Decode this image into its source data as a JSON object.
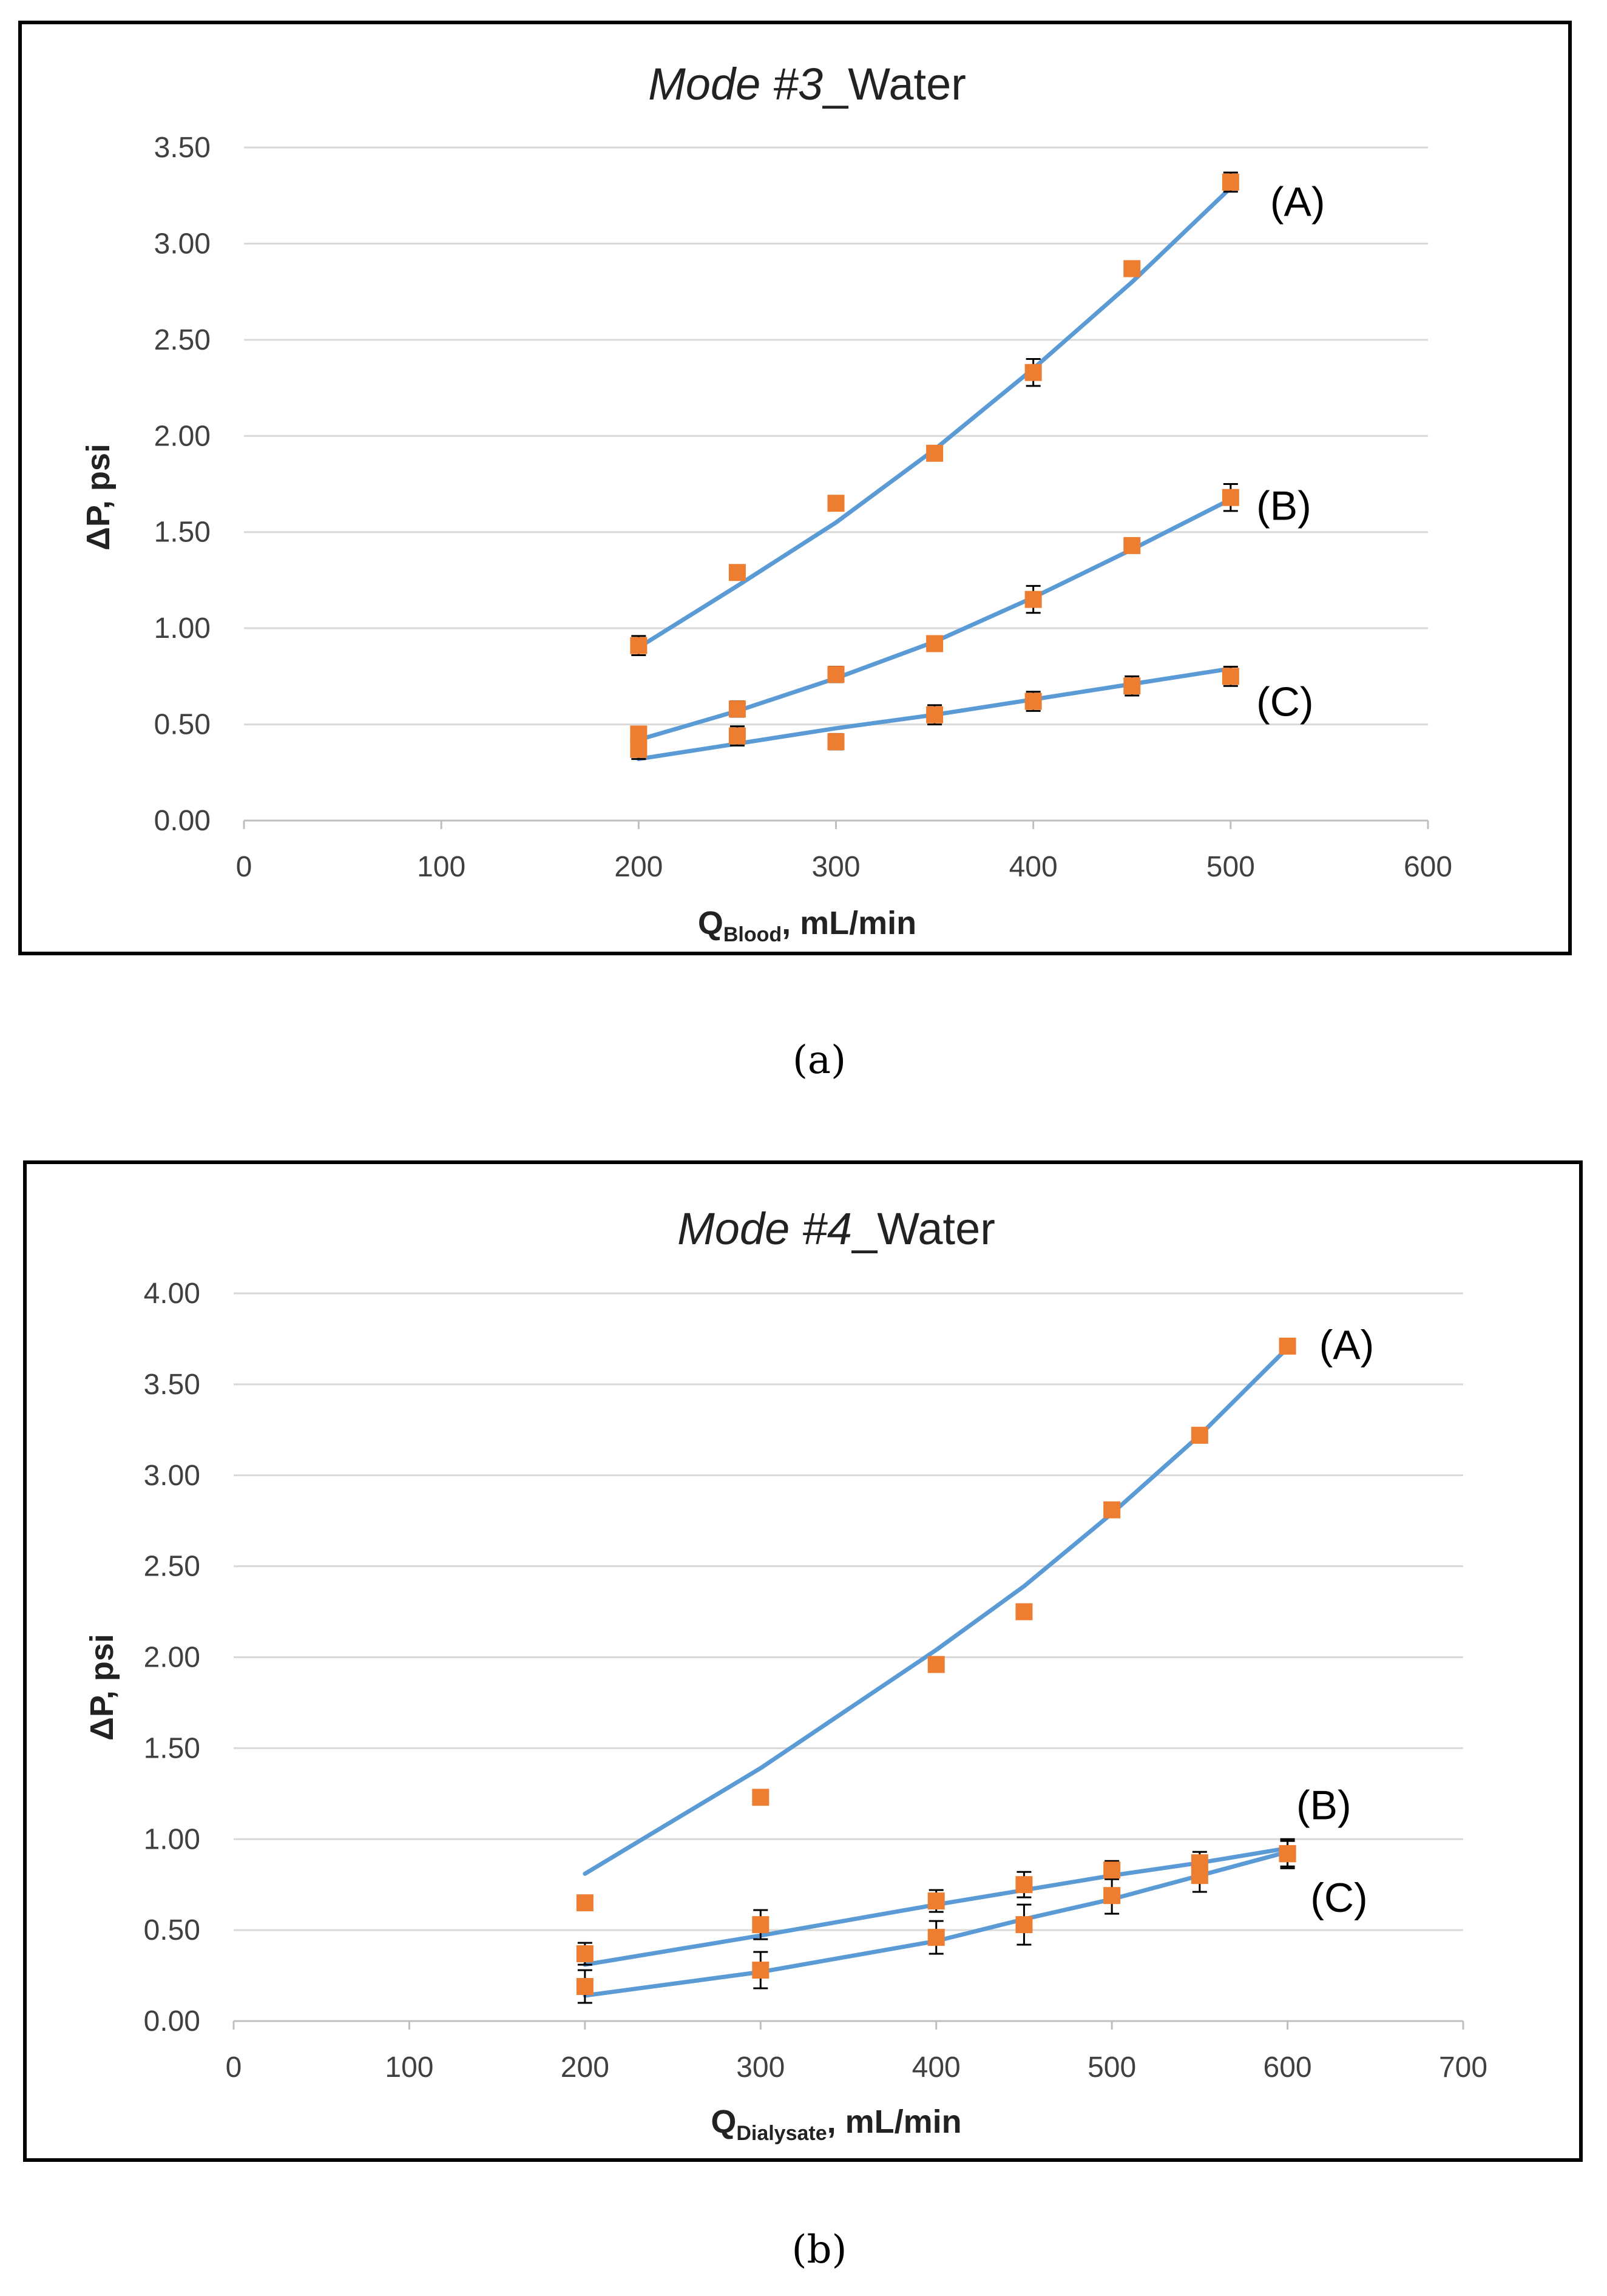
{
  "figure": {
    "caption_a": "(a)",
    "caption_b": "(b)"
  },
  "colors": {
    "line": "#5b9bd5",
    "marker": "#ed7d31",
    "grid": "#d9d9d9",
    "axis": "#bfbfbf",
    "frame": "#000000"
  },
  "chart_data": [
    {
      "id": "a",
      "type": "scatter",
      "title_italic": "Mode #3",
      "title_rest": "_Water",
      "xlabel_main": "Q",
      "xlabel_sub": "Blood",
      "xlabel_rest": ", mL/min",
      "ylabel": "ΔP, psi",
      "xlim": [
        0,
        600
      ],
      "ylim": [
        0,
        3.5
      ],
      "xticks": [
        0,
        100,
        200,
        300,
        400,
        500,
        600
      ],
      "yticks": [
        0,
        0.5,
        1.0,
        1.5,
        2.0,
        2.5,
        3.0,
        3.5
      ],
      "xtick_labels": [
        "0",
        "100",
        "200",
        "300",
        "400",
        "500",
        "600"
      ],
      "ytick_labels": [
        "0.00",
        "0.50",
        "1.00",
        "1.50",
        "2.00",
        "2.50",
        "3.00",
        "3.50"
      ],
      "grid": true,
      "series": [
        {
          "name": "(A)",
          "label_anchor": [
            520,
            3.22
          ],
          "points": [
            {
              "x": 200,
              "y": 0.91,
              "err": 0.05
            },
            {
              "x": 250,
              "y": 1.29,
              "err": 0.03
            },
            {
              "x": 300,
              "y": 1.65,
              "err": 0.03
            },
            {
              "x": 350,
              "y": 1.91,
              "err": 0.03
            },
            {
              "x": 400,
              "y": 2.33,
              "err": 0.07
            },
            {
              "x": 450,
              "y": 2.87,
              "err": 0.03
            },
            {
              "x": 500,
              "y": 3.32,
              "err": 0.05
            }
          ],
          "fit": [
            [
              200,
              0.9
            ],
            [
              250,
              1.22
            ],
            [
              300,
              1.55
            ],
            [
              350,
              1.93
            ],
            [
              400,
              2.35
            ],
            [
              450,
              2.8
            ],
            [
              500,
              3.29
            ]
          ]
        },
        {
          "name": "(B)",
          "label_anchor": [
            513,
            1.64
          ],
          "points": [
            {
              "x": 200,
              "y": 0.45,
              "err": 0.03
            },
            {
              "x": 250,
              "y": 0.58,
              "err": 0.04
            },
            {
              "x": 300,
              "y": 0.76,
              "err": 0.04
            },
            {
              "x": 350,
              "y": 0.92,
              "err": 0.03
            },
            {
              "x": 400,
              "y": 1.15,
              "err": 0.07
            },
            {
              "x": 450,
              "y": 1.43,
              "err": 0.03
            },
            {
              "x": 500,
              "y": 1.68,
              "err": 0.07
            }
          ],
          "fit": [
            [
              200,
              0.42
            ],
            [
              250,
              0.57
            ],
            [
              300,
              0.74
            ],
            [
              350,
              0.93
            ],
            [
              400,
              1.16
            ],
            [
              450,
              1.41
            ],
            [
              500,
              1.67
            ]
          ]
        },
        {
          "name": "(C)",
          "label_anchor": [
            513,
            0.62
          ],
          "points": [
            {
              "x": 200,
              "y": 0.37,
              "err": 0.05
            },
            {
              "x": 250,
              "y": 0.44,
              "err": 0.05
            },
            {
              "x": 300,
              "y": 0.41,
              "err": 0.04
            },
            {
              "x": 350,
              "y": 0.55,
              "err": 0.05
            },
            {
              "x": 400,
              "y": 0.62,
              "err": 0.05
            },
            {
              "x": 450,
              "y": 0.7,
              "err": 0.05
            },
            {
              "x": 500,
              "y": 0.75,
              "err": 0.05
            }
          ],
          "fit": [
            [
              200,
              0.32
            ],
            [
              250,
              0.4
            ],
            [
              300,
              0.48
            ],
            [
              350,
              0.55
            ],
            [
              400,
              0.63
            ],
            [
              450,
              0.71
            ],
            [
              500,
              0.79
            ]
          ]
        }
      ]
    },
    {
      "id": "b",
      "type": "scatter",
      "title_italic": "Mode #4",
      "title_rest": "_Water",
      "xlabel_main": "Q",
      "xlabel_sub": "Dialysate",
      "xlabel_rest": ", mL/min",
      "ylabel": "ΔP, psi",
      "xlim": [
        0,
        700
      ],
      "ylim": [
        0,
        4.0
      ],
      "xticks": [
        0,
        100,
        200,
        300,
        400,
        500,
        600,
        700
      ],
      "yticks": [
        0,
        0.5,
        1.0,
        1.5,
        2.0,
        2.5,
        3.0,
        3.5,
        4.0
      ],
      "xtick_labels": [
        "0",
        "100",
        "200",
        "300",
        "400",
        "500",
        "600",
        "700"
      ],
      "ytick_labels": [
        "0.00",
        "0.50",
        "1.00",
        "1.50",
        "2.00",
        "2.50",
        "3.00",
        "3.50",
        "4.00"
      ],
      "grid": true,
      "series": [
        {
          "name": "(A)",
          "label_anchor": [
            618,
            3.72
          ],
          "points": [
            {
              "x": 200,
              "y": 0.65,
              "err": 0.02
            },
            {
              "x": 300,
              "y": 1.23,
              "err": 0.02
            },
            {
              "x": 400,
              "y": 1.96,
              "err": 0.02
            },
            {
              "x": 450,
              "y": 2.25,
              "err": 0.02
            },
            {
              "x": 500,
              "y": 2.81,
              "err": 0.03
            },
            {
              "x": 550,
              "y": 3.22,
              "err": 0.03
            },
            {
              "x": 600,
              "y": 3.71,
              "err": 0.03
            }
          ],
          "fit": [
            [
              200,
              0.81
            ],
            [
              300,
              1.39
            ],
            [
              400,
              2.04
            ],
            [
              450,
              2.39
            ],
            [
              500,
              2.79
            ],
            [
              550,
              3.22
            ],
            [
              600,
              3.7
            ]
          ]
        },
        {
          "name": "(B)",
          "label_anchor": [
            605,
            1.19
          ],
          "points": [
            {
              "x": 200,
              "y": 0.37,
              "err": 0.06
            },
            {
              "x": 300,
              "y": 0.53,
              "err": 0.08
            },
            {
              "x": 400,
              "y": 0.66,
              "err": 0.06
            },
            {
              "x": 450,
              "y": 0.75,
              "err": 0.07
            },
            {
              "x": 500,
              "y": 0.83,
              "err": 0.05
            },
            {
              "x": 550,
              "y": 0.87,
              "err": 0.06
            },
            {
              "x": 600,
              "y": 0.92,
              "err": 0.07
            }
          ],
          "fit": [
            [
              200,
              0.31
            ],
            [
              300,
              0.47
            ],
            [
              400,
              0.64
            ],
            [
              450,
              0.72
            ],
            [
              500,
              0.8
            ],
            [
              550,
              0.87
            ],
            [
              600,
              0.95
            ]
          ]
        },
        {
          "name": "(C)",
          "label_anchor": [
            613,
            0.68
          ],
          "points": [
            {
              "x": 200,
              "y": 0.19,
              "err": 0.09
            },
            {
              "x": 300,
              "y": 0.28,
              "err": 0.1
            },
            {
              "x": 400,
              "y": 0.46,
              "err": 0.09
            },
            {
              "x": 450,
              "y": 0.53,
              "err": 0.11
            },
            {
              "x": 500,
              "y": 0.69,
              "err": 0.1
            },
            {
              "x": 550,
              "y": 0.8,
              "err": 0.09
            },
            {
              "x": 600,
              "y": 0.92,
              "err": 0.08
            }
          ],
          "fit": [
            [
              200,
              0.14
            ],
            [
              300,
              0.27
            ],
            [
              400,
              0.44
            ],
            [
              450,
              0.56
            ],
            [
              500,
              0.67
            ],
            [
              550,
              0.8
            ],
            [
              600,
              0.93
            ]
          ]
        }
      ]
    }
  ]
}
